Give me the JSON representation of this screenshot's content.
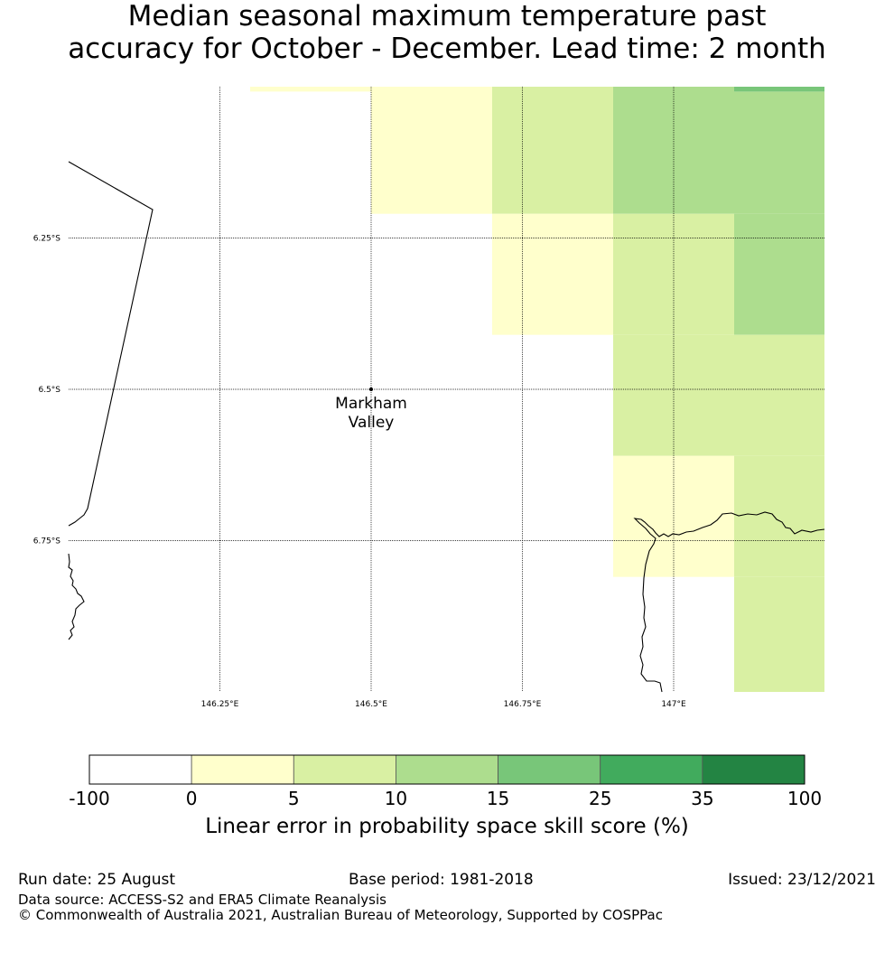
{
  "title": {
    "line1": "Median seasonal maximum temperature past",
    "line2": "accuracy for October - December. Lead time: 2 month"
  },
  "map": {
    "lat_labels": [
      {
        "value": -6.25,
        "text": "6.25°S"
      },
      {
        "value": -6.5,
        "text": "6.5°S"
      },
      {
        "value": -6.75,
        "text": "6.75°S"
      }
    ],
    "lon_labels": [
      {
        "value": 146.25,
        "text": "146.25°E"
      },
      {
        "value": 146.5,
        "text": "146.5°E"
      },
      {
        "value": 146.75,
        "text": "146.75°E"
      },
      {
        "value": 147.0,
        "text": "147°E"
      }
    ],
    "location": {
      "name_line1": "Markham",
      "name_line2": "Valley",
      "lat": -6.5,
      "lon": 146.5
    },
    "grid_cells": [
      {
        "lon_min": 146.3,
        "lon_max": 146.5,
        "lat_min": -6.008,
        "lat_max": -6.0,
        "bin": 1
      },
      {
        "lon_min": 146.5,
        "lon_max": 146.7,
        "lat_min": -6.21,
        "lat_max": -6.0,
        "bin": 1
      },
      {
        "lon_min": 146.7,
        "lon_max": 146.9,
        "lat_min": -6.21,
        "lat_max": -6.0,
        "bin": 2
      },
      {
        "lon_min": 146.9,
        "lon_max": 147.1,
        "lat_min": -6.21,
        "lat_max": -6.0,
        "bin": 3
      },
      {
        "lon_min": 147.1,
        "lon_max": 147.25,
        "lat_min": -6.21,
        "lat_max": -6.008,
        "bin": 3
      },
      {
        "lon_min": 147.1,
        "lon_max": 147.25,
        "lat_min": -6.008,
        "lat_max": -6.0,
        "bin": 4
      },
      {
        "lon_min": 146.7,
        "lon_max": 146.9,
        "lat_min": -6.41,
        "lat_max": -6.21,
        "bin": 1
      },
      {
        "lon_min": 146.9,
        "lon_max": 147.1,
        "lat_min": -6.41,
        "lat_max": -6.21,
        "bin": 2
      },
      {
        "lon_min": 147.1,
        "lon_max": 147.25,
        "lat_min": -6.41,
        "lat_max": -6.21,
        "bin": 3
      },
      {
        "lon_min": 146.9,
        "lon_max": 147.1,
        "lat_min": -6.61,
        "lat_max": -6.41,
        "bin": 2
      },
      {
        "lon_min": 147.1,
        "lon_max": 147.25,
        "lat_min": -6.61,
        "lat_max": -6.41,
        "bin": 2
      },
      {
        "lon_min": 146.9,
        "lon_max": 147.1,
        "lat_min": -6.81,
        "lat_max": -6.61,
        "bin": 1
      },
      {
        "lon_min": 147.1,
        "lon_max": 147.25,
        "lat_min": -6.81,
        "lat_max": -6.61,
        "bin": 2
      },
      {
        "lon_min": 147.1,
        "lon_max": 147.25,
        "lat_min": -7.0,
        "lat_max": -6.81,
        "bin": 2
      }
    ]
  },
  "colorbar": {
    "labels": [
      "-100",
      "0",
      "5",
      "10",
      "15",
      "25",
      "35",
      "100"
    ],
    "colors": [
      "#ffffff",
      "#ffffcc",
      "#d9f0a3",
      "#addd8e",
      "#78c679",
      "#41ab5d",
      "#238443"
    ],
    "title": "Linear error in probability space skill score (%)"
  },
  "footer": {
    "run_date": "Run date: 25 August",
    "base_period": "Base period: 1981-2018",
    "issued": "Issued: 23/12/2021",
    "data_source": "Data source: ACCESS-S2 and ERA5 Climate Reanalysis",
    "copyright": "© Commonwealth of Australia 2021, Australian Bureau of Meteorology, Supported by COSPPac"
  }
}
